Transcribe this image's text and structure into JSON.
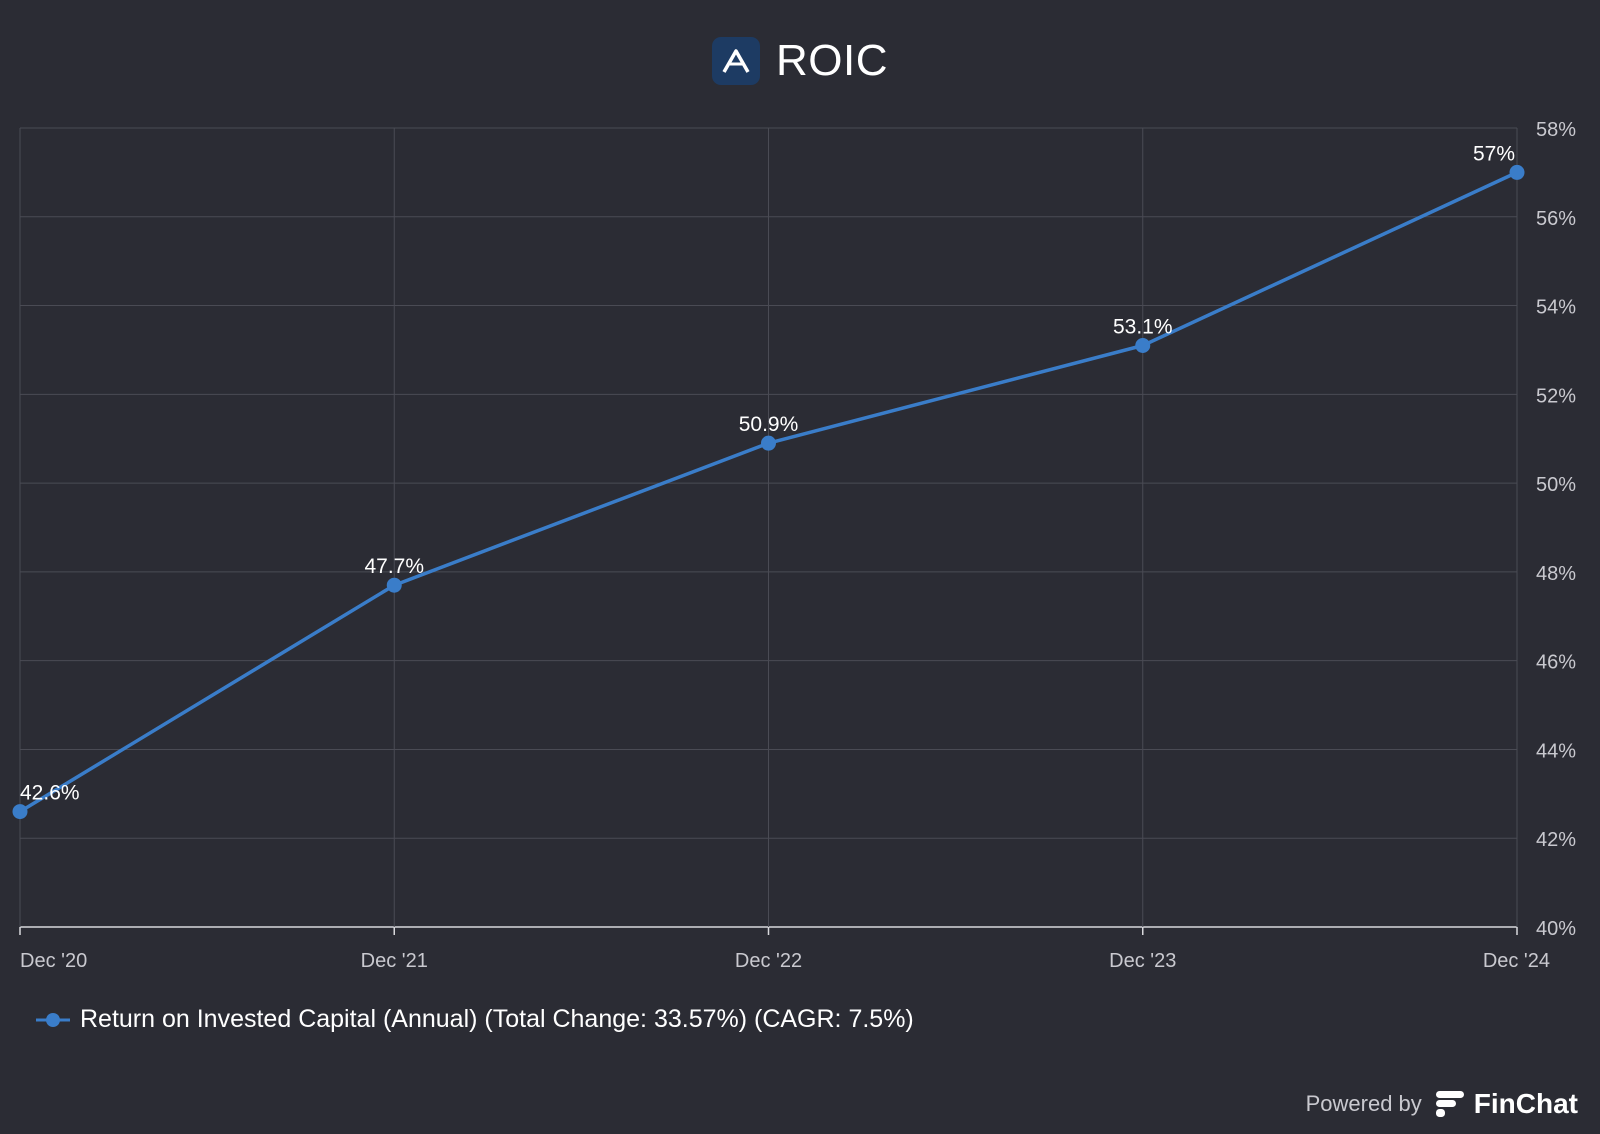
{
  "header": {
    "title": "ROIC",
    "logo_icon": "company-logo-a-icon",
    "logo_bg": "#1d3b63"
  },
  "chart_data": {
    "type": "line",
    "title": "ROIC",
    "categories": [
      "Dec '20",
      "Dec '21",
      "Dec '22",
      "Dec '23",
      "Dec '24"
    ],
    "series": [
      {
        "name": "Return on Invested Capital (Annual) (Total Change: 33.57%) (CAGR: 7.5%)",
        "values": [
          42.6,
          47.7,
          50.9,
          53.1,
          57
        ],
        "labels": [
          "42.6%",
          "47.7%",
          "50.9%",
          "53.1%",
          "57%"
        ],
        "color": "#3a7dc9"
      }
    ],
    "ylim": [
      40,
      58
    ],
    "y_ticks": [
      "40%",
      "42%",
      "44%",
      "46%",
      "48%",
      "50%",
      "52%",
      "54%",
      "56%",
      "58%"
    ],
    "y_axis_position": "right",
    "grid": true,
    "legend_position": "bottom-left"
  },
  "legend": {
    "label": "Return on Invested Capital (Annual) (Total Change: 33.57%) (CAGR: 7.5%)"
  },
  "footer": {
    "powered_by": "Powered by",
    "brand": "FinChat",
    "brand_icon": "finchat-logo-icon"
  },
  "colors": {
    "background": "#2b2c34",
    "grid": "#4a4b54",
    "axis_text": "#c9c9cf",
    "line": "#3a7dc9"
  }
}
